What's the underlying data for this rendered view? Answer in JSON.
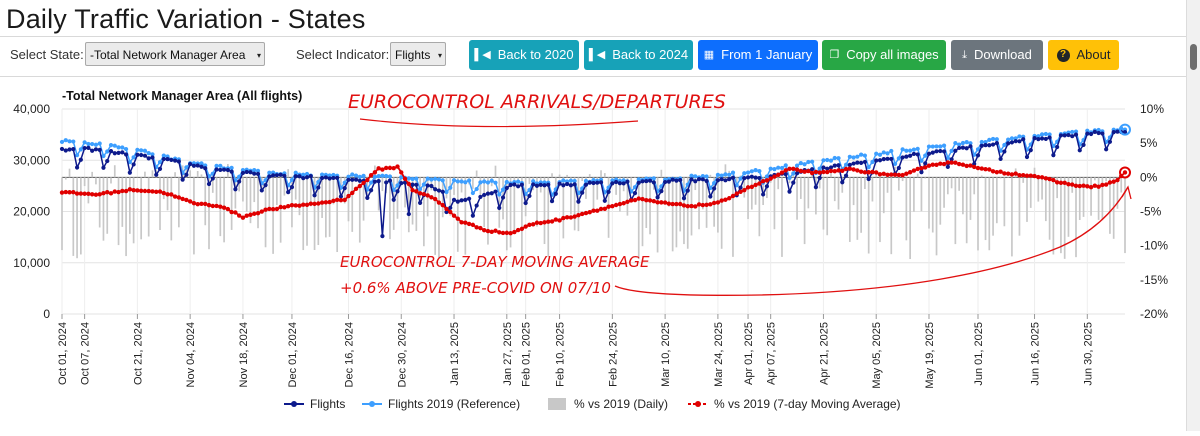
{
  "page": {
    "title": "Daily Traffic Variation - States"
  },
  "controls": {
    "state_label": "Select State:",
    "state_value": "-Total Network Manager Area",
    "indicator_label": "Select Indicator:",
    "indicator_value": "Flights"
  },
  "buttons": {
    "back_2020": "Back to 2020",
    "back_2024": "Back to 2024",
    "from_jan": "From 1 January",
    "copy_images": "Copy all images",
    "download": "Download",
    "about": "About"
  },
  "colors": {
    "flights": "#0d1a8c",
    "reference": "#3d9fff",
    "daily_bars": "#c8c8c8",
    "moving_avg": "#e00000",
    "annotation": "#e01010"
  },
  "annotations": {
    "top": "EUROCONTROL ARRIVALS/DEPARTURES",
    "mid_line1": "EUROCONTROL 7-DAY MOVING AVERAGE",
    "mid_line2": "+0.6% ABOVE PRE-COVID ON 07/10"
  },
  "chart_data": {
    "type": "line",
    "title": "-Total Network Manager Area (All flights)",
    "x_start": "2024-10-01",
    "x_end": "2025-07-10",
    "x_tick_labels": [
      "Oct 01, 2024",
      "Oct 07, 2024",
      "Oct 21, 2024",
      "Nov 04, 2024",
      "Nov 18, 2024",
      "Dec 01, 2024",
      "Dec 16, 2024",
      "Dec 30, 2024",
      "Jan 13, 2025",
      "Jan 27, 2025",
      "Feb 01, 2025",
      "Feb 10, 2025",
      "Feb 24, 2025",
      "Mar 10, 2025",
      "Mar 24, 2025",
      "Apr 01, 2025",
      "Apr 07, 2025",
      "Apr 21, 2025",
      "May 05, 2025",
      "May 19, 2025",
      "Jun 01, 2025",
      "Jun 16, 2025",
      "Jun 30, 2025"
    ],
    "x_tick_dates": [
      "2024-10-01",
      "2024-10-07",
      "2024-10-21",
      "2024-11-04",
      "2024-11-18",
      "2024-12-01",
      "2024-12-16",
      "2024-12-30",
      "2025-01-13",
      "2025-01-27",
      "2025-02-01",
      "2025-02-10",
      "2025-02-24",
      "2025-03-10",
      "2025-03-24",
      "2025-04-01",
      "2025-04-07",
      "2025-04-21",
      "2025-05-05",
      "2025-05-19",
      "2025-06-01",
      "2025-06-16",
      "2025-06-30"
    ],
    "y_left": {
      "min": 0,
      "max": 40000,
      "ticks": [
        0,
        10000,
        20000,
        30000,
        40000
      ],
      "tick_labels": [
        "0",
        "10,000",
        "20,000",
        "30,000",
        "40,000"
      ]
    },
    "y_right": {
      "min": -20,
      "max": 10,
      "ticks": [
        10,
        5,
        0,
        -5,
        -10,
        -15,
        -20
      ],
      "tick_labels": [
        "10%",
        "5%",
        "0%",
        "-5%",
        "-10%",
        "-15%",
        "-20%"
      ]
    },
    "legend": [
      "Flights",
      "Flights 2019 (Reference)",
      "% vs 2019 (Daily)",
      "% vs 2019 (7-day Moving Average)"
    ],
    "legend_position": "bottom",
    "series": [
      {
        "name": "Flights",
        "axis": "left",
        "kind": "line-markers",
        "weekly_levels": [
          32000,
          32200,
          31500,
          30800,
          30000,
          29000,
          28200,
          27500,
          27000,
          26800,
          26500,
          26200,
          26000,
          25600,
          25000,
          22000,
          23200,
          25000,
          25200,
          25300,
          25500,
          25600,
          25800,
          26000,
          26100,
          26300,
          26500,
          27000,
          27800,
          28500,
          29300,
          30000,
          30800,
          31500,
          32200,
          33000,
          33600,
          34200,
          34800,
          35300,
          35600,
          35900
        ],
        "weekend_dip": 3500,
        "holiday_dips": [
          {
            "date": "2024-12-25",
            "value": 15200
          },
          {
            "date": "2025-01-01",
            "value": 19500
          }
        ]
      },
      {
        "name": "Flights 2019 (Reference)",
        "axis": "left",
        "kind": "line-markers",
        "weekly_levels": [
          33800,
          33400,
          32800,
          31800,
          30500,
          29500,
          28700,
          28000,
          27500,
          27300,
          27100,
          27000,
          26800,
          26600,
          26400,
          26000,
          25800,
          25700,
          25700,
          25800,
          25900,
          26000,
          26200,
          26400,
          26800,
          27200,
          27800,
          28500,
          29200,
          30000,
          30700,
          31300,
          32000,
          32600,
          33200,
          33800,
          34300,
          34800,
          35200,
          35600,
          36000,
          36300
        ],
        "weekend_dip": 2500
      },
      {
        "name": "% vs 2019 (Daily)",
        "axis": "right",
        "kind": "bar",
        "range_pct": [
          -12,
          2
        ]
      },
      {
        "name": "% vs 2019 (7-day Moving Average)",
        "axis": "right",
        "kind": "line-markers",
        "points": [
          [
            "2024-10-01",
            -2.2
          ],
          [
            "2024-10-10",
            -2.5
          ],
          [
            "2024-10-20",
            -1.8
          ],
          [
            "2024-10-28",
            -2.2
          ],
          [
            "2024-11-05",
            -3.8
          ],
          [
            "2024-11-12",
            -4.2
          ],
          [
            "2024-11-18",
            -5.8
          ],
          [
            "2024-11-24",
            -4.8
          ],
          [
            "2024-12-01",
            -4.2
          ],
          [
            "2024-12-08",
            -3.8
          ],
          [
            "2024-12-15",
            -3.2
          ],
          [
            "2024-12-20",
            -0.8
          ],
          [
            "2024-12-24",
            1.2
          ],
          [
            "2024-12-29",
            1.5
          ],
          [
            "2025-01-02",
            -1.8
          ],
          [
            "2025-01-08",
            -3.2
          ],
          [
            "2025-01-15",
            -6.5
          ],
          [
            "2025-01-22",
            -7.8
          ],
          [
            "2025-01-28",
            -8.2
          ],
          [
            "2025-02-03",
            -6.8
          ],
          [
            "2025-02-10",
            -6.2
          ],
          [
            "2025-02-17",
            -5.2
          ],
          [
            "2025-02-24",
            -4.2
          ],
          [
            "2025-03-03",
            -3.2
          ],
          [
            "2025-03-10",
            -3.8
          ],
          [
            "2025-03-17",
            -4.2
          ],
          [
            "2025-03-24",
            -3.8
          ],
          [
            "2025-03-31",
            -1.8
          ],
          [
            "2025-04-07",
            -0.2
          ],
          [
            "2025-04-12",
            1.2
          ],
          [
            "2025-04-20",
            0.6
          ],
          [
            "2025-04-28",
            1.2
          ],
          [
            "2025-05-05",
            0.6
          ],
          [
            "2025-05-12",
            0.2
          ],
          [
            "2025-05-19",
            1.8
          ],
          [
            "2025-05-26",
            2.2
          ],
          [
            "2025-06-02",
            1.2
          ],
          [
            "2025-06-09",
            0.6
          ],
          [
            "2025-06-16",
            0.2
          ],
          [
            "2025-06-23",
            -0.8
          ],
          [
            "2025-06-30",
            -1.4
          ],
          [
            "2025-07-04",
            -1.2
          ],
          [
            "2025-07-08",
            -0.4
          ],
          [
            "2025-07-10",
            0.6
          ]
        ]
      }
    ]
  }
}
